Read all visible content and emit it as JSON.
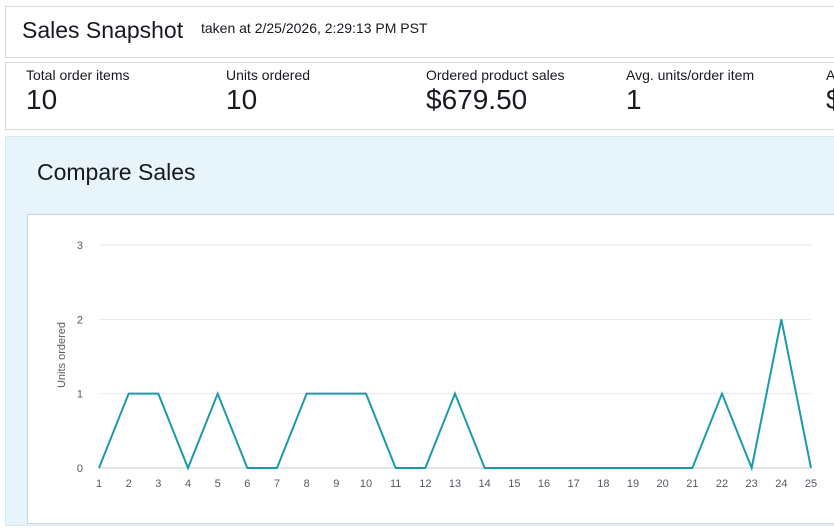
{
  "header": {
    "title": "Sales Snapshot",
    "taken": "taken at 2/25/2026, 2:29:13 PM PST"
  },
  "metrics": [
    {
      "label": "Total order items",
      "value": "10"
    },
    {
      "label": "Units ordered",
      "value": "10"
    },
    {
      "label": "Ordered product sales",
      "value": "$679.50"
    },
    {
      "label": "Avg. units/order item",
      "value": "1"
    },
    {
      "label": "A",
      "value": "$"
    }
  ],
  "compare": {
    "title": "Compare Sales"
  },
  "chart_data": {
    "type": "line",
    "x": [
      1,
      2,
      3,
      4,
      5,
      6,
      7,
      8,
      9,
      10,
      11,
      12,
      13,
      14,
      15,
      16,
      17,
      18,
      19,
      20,
      21,
      22,
      23,
      24,
      25
    ],
    "series": [
      {
        "values": [
          0,
          1,
          1,
          0,
          1,
          0,
          0,
          1,
          1,
          1,
          0,
          0,
          1,
          0,
          0,
          0,
          0,
          0,
          0,
          0,
          0,
          1,
          0,
          2,
          0
        ]
      }
    ],
    "title": "",
    "xlabel": "",
    "ylabel": "Units ordered",
    "ylim": [
      0,
      3
    ],
    "yticks": [
      0,
      1,
      2,
      3
    ],
    "grid": true,
    "line_color": "#1b9aaa"
  }
}
